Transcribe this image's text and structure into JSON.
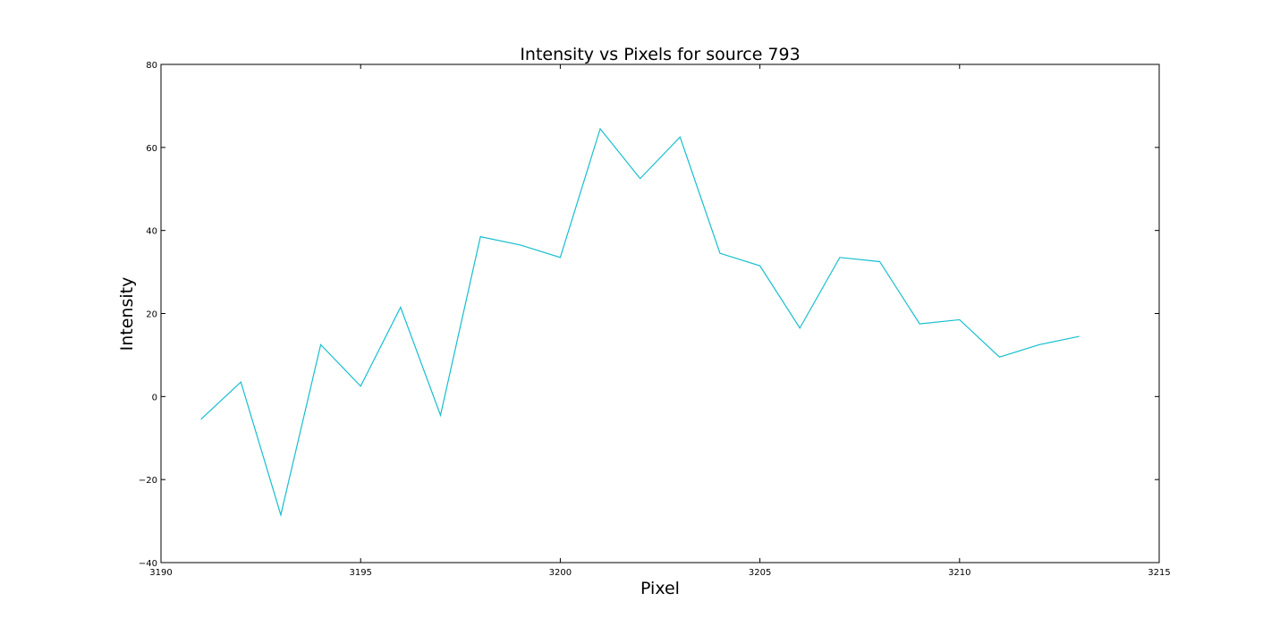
{
  "chart_data": {
    "type": "line",
    "title": "Intensity vs Pixels for source 793",
    "xlabel": "Pixel",
    "ylabel": "Intensity",
    "xlim": [
      3190,
      3215
    ],
    "ylim": [
      -40,
      80
    ],
    "xticks": [
      3190,
      3195,
      3200,
      3205,
      3210,
      3215
    ],
    "yticks": [
      -40,
      -20,
      0,
      20,
      40,
      60,
      80
    ],
    "yticks_text": [
      "−40",
      "−20",
      "0",
      "20",
      "40",
      "60",
      "80"
    ],
    "grid": false,
    "series": [
      {
        "color": "#17becf",
        "x": [
          3191,
          3192,
          3193,
          3194,
          3195,
          3196,
          3197,
          3198,
          3199,
          3200,
          3201,
          3202,
          3203,
          3204,
          3205,
          3206,
          3207,
          3208,
          3209,
          3210,
          3211,
          3212,
          3213
        ],
        "y": [
          -5.5,
          3.5,
          -28.5,
          12.5,
          2.5,
          21.5,
          -4.5,
          38.5,
          36.5,
          33.5,
          64.5,
          52.5,
          62.5,
          34.5,
          31.5,
          16.5,
          33.5,
          32.5,
          17.5,
          18.5,
          9.5,
          12.5,
          14.5
        ]
      }
    ]
  }
}
